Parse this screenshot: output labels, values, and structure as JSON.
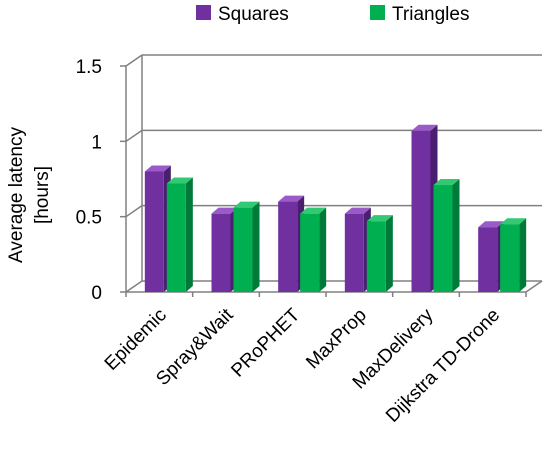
{
  "chart_data": {
    "type": "bar",
    "title": "",
    "xlabel": "",
    "ylabel": [
      "Average latency",
      "[hours]"
    ],
    "ylim": [
      0,
      1.5
    ],
    "yticks": [
      "0",
      "0.5",
      "1",
      "1.5"
    ],
    "ytick_values": [
      0,
      0.5,
      1,
      1.5
    ],
    "grid": true,
    "legend_position": "top-center",
    "categories": [
      "Epidemic",
      "Spray&Wait",
      "PRoPHET",
      "MaxProp",
      "MaxDelivery",
      "Dijkstra TD-Drone"
    ],
    "series": [
      {
        "name": "Squares",
        "color": "#7030A0",
        "side_color": "#4B1F6F",
        "top_color": "#9A5BC8",
        "values": [
          0.8,
          0.52,
          0.6,
          0.52,
          1.07,
          0.43
        ]
      },
      {
        "name": "Triangles",
        "color": "#00B050",
        "side_color": "#007A38",
        "top_color": "#33C873",
        "values": [
          0.72,
          0.56,
          0.52,
          0.47,
          0.71,
          0.45
        ]
      }
    ]
  }
}
